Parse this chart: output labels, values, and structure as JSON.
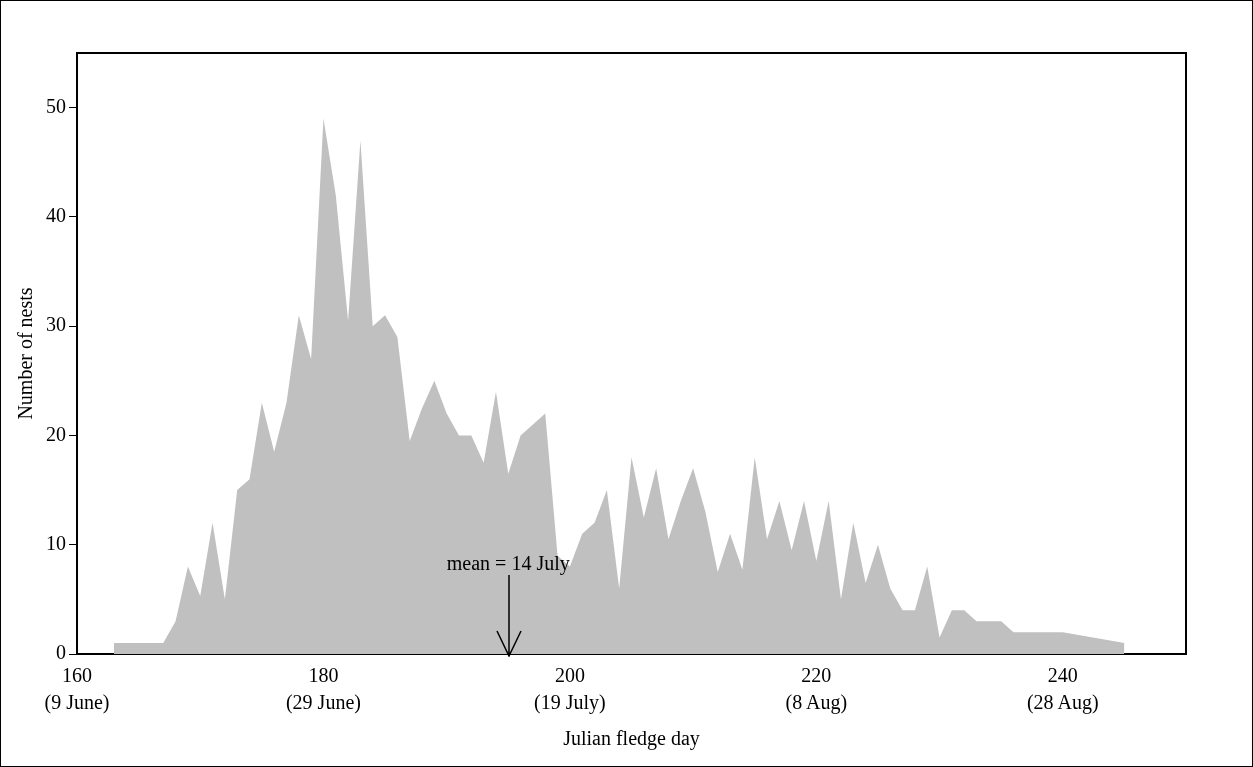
{
  "chart_data": {
    "type": "area",
    "xlabel": "Julian fledge day",
    "ylabel": "Number of nests",
    "x": [
      163,
      164,
      165,
      166,
      167,
      168,
      169,
      170,
      171,
      172,
      173,
      174,
      175,
      176,
      177,
      178,
      179,
      180,
      181,
      182,
      183,
      184,
      185,
      186,
      187,
      188,
      189,
      190,
      191,
      192,
      193,
      194,
      195,
      196,
      197,
      198,
      199,
      200,
      201,
      202,
      203,
      204,
      205,
      206,
      207,
      208,
      209,
      210,
      211,
      212,
      213,
      214,
      215,
      216,
      217,
      218,
      219,
      220,
      221,
      222,
      223,
      224,
      225,
      226,
      227,
      228,
      229,
      230,
      231,
      232,
      233,
      234,
      235,
      236,
      237,
      238,
      239,
      240,
      245
    ],
    "series": [
      {
        "color": "#c0c0c0",
        "values": [
          1,
          1,
          1,
          1,
          1,
          3,
          8,
          5.3,
          12,
          5,
          15,
          16,
          23,
          18.5,
          23,
          31,
          27,
          49,
          42,
          30.5,
          47,
          30,
          31,
          29,
          19.5,
          22.5,
          25,
          22,
          20,
          20,
          17.5,
          24,
          16.5,
          20,
          21,
          22,
          9,
          8,
          11,
          12,
          15,
          6,
          18,
          12.5,
          17,
          10.5,
          14,
          17,
          13,
          7.5,
          11,
          7.7,
          18,
          10.5,
          14,
          9.5,
          14,
          8.5,
          14,
          5,
          12,
          6.5,
          10,
          6,
          4,
          4,
          8,
          1.5,
          4,
          4,
          3,
          3,
          3,
          2,
          2,
          2,
          2,
          2,
          1
        ]
      }
    ],
    "xlim": [
      160,
      250
    ],
    "xticks": [
      160,
      180,
      200,
      220,
      240
    ],
    "ylim": [
      0,
      55
    ],
    "yticks": [
      0,
      10,
      20,
      30,
      40,
      50
    ],
    "annotations": [
      {
        "text": "mean = 14 July",
        "x": 195,
        "y": 0
      },
      "(9 June)",
      "(29 June)",
      "(19 July)",
      "(8 Aug)",
      "(28 Aug)"
    ],
    "grid": false,
    "legend": false
  }
}
